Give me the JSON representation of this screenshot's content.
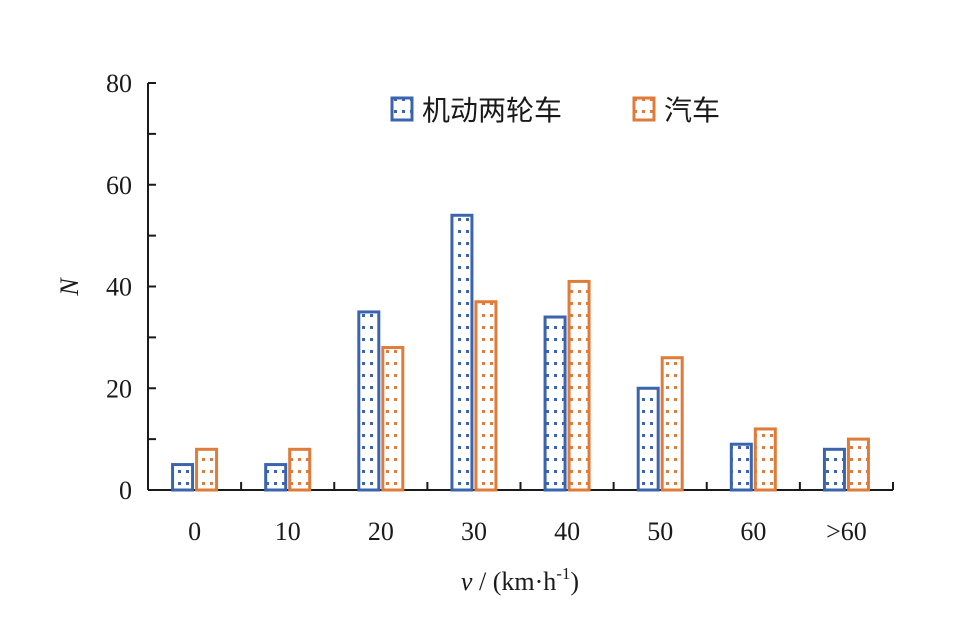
{
  "chart_data": {
    "type": "bar",
    "categories": [
      "0",
      "10",
      "20",
      "30",
      "40",
      "50",
      "60",
      ">60"
    ],
    "series": [
      {
        "name": "机动两轮车",
        "color": "#3a64ad",
        "values": [
          5,
          5,
          35,
          54,
          34,
          20,
          9,
          8
        ]
      },
      {
        "name": "汽车",
        "color": "#e07b39",
        "values": [
          8,
          8,
          28,
          37,
          41,
          26,
          12,
          10
        ]
      }
    ],
    "xlabel": {
      "var": "v",
      "rest": " / (km·h",
      "sup": "-1",
      "close": ")"
    },
    "ylabel": "N",
    "ylim": [
      0,
      80
    ],
    "yticks": [
      "0",
      "20",
      "40",
      "60",
      "80"
    ],
    "legend_position": "top-right",
    "grid": false,
    "pattern": "dotted"
  }
}
